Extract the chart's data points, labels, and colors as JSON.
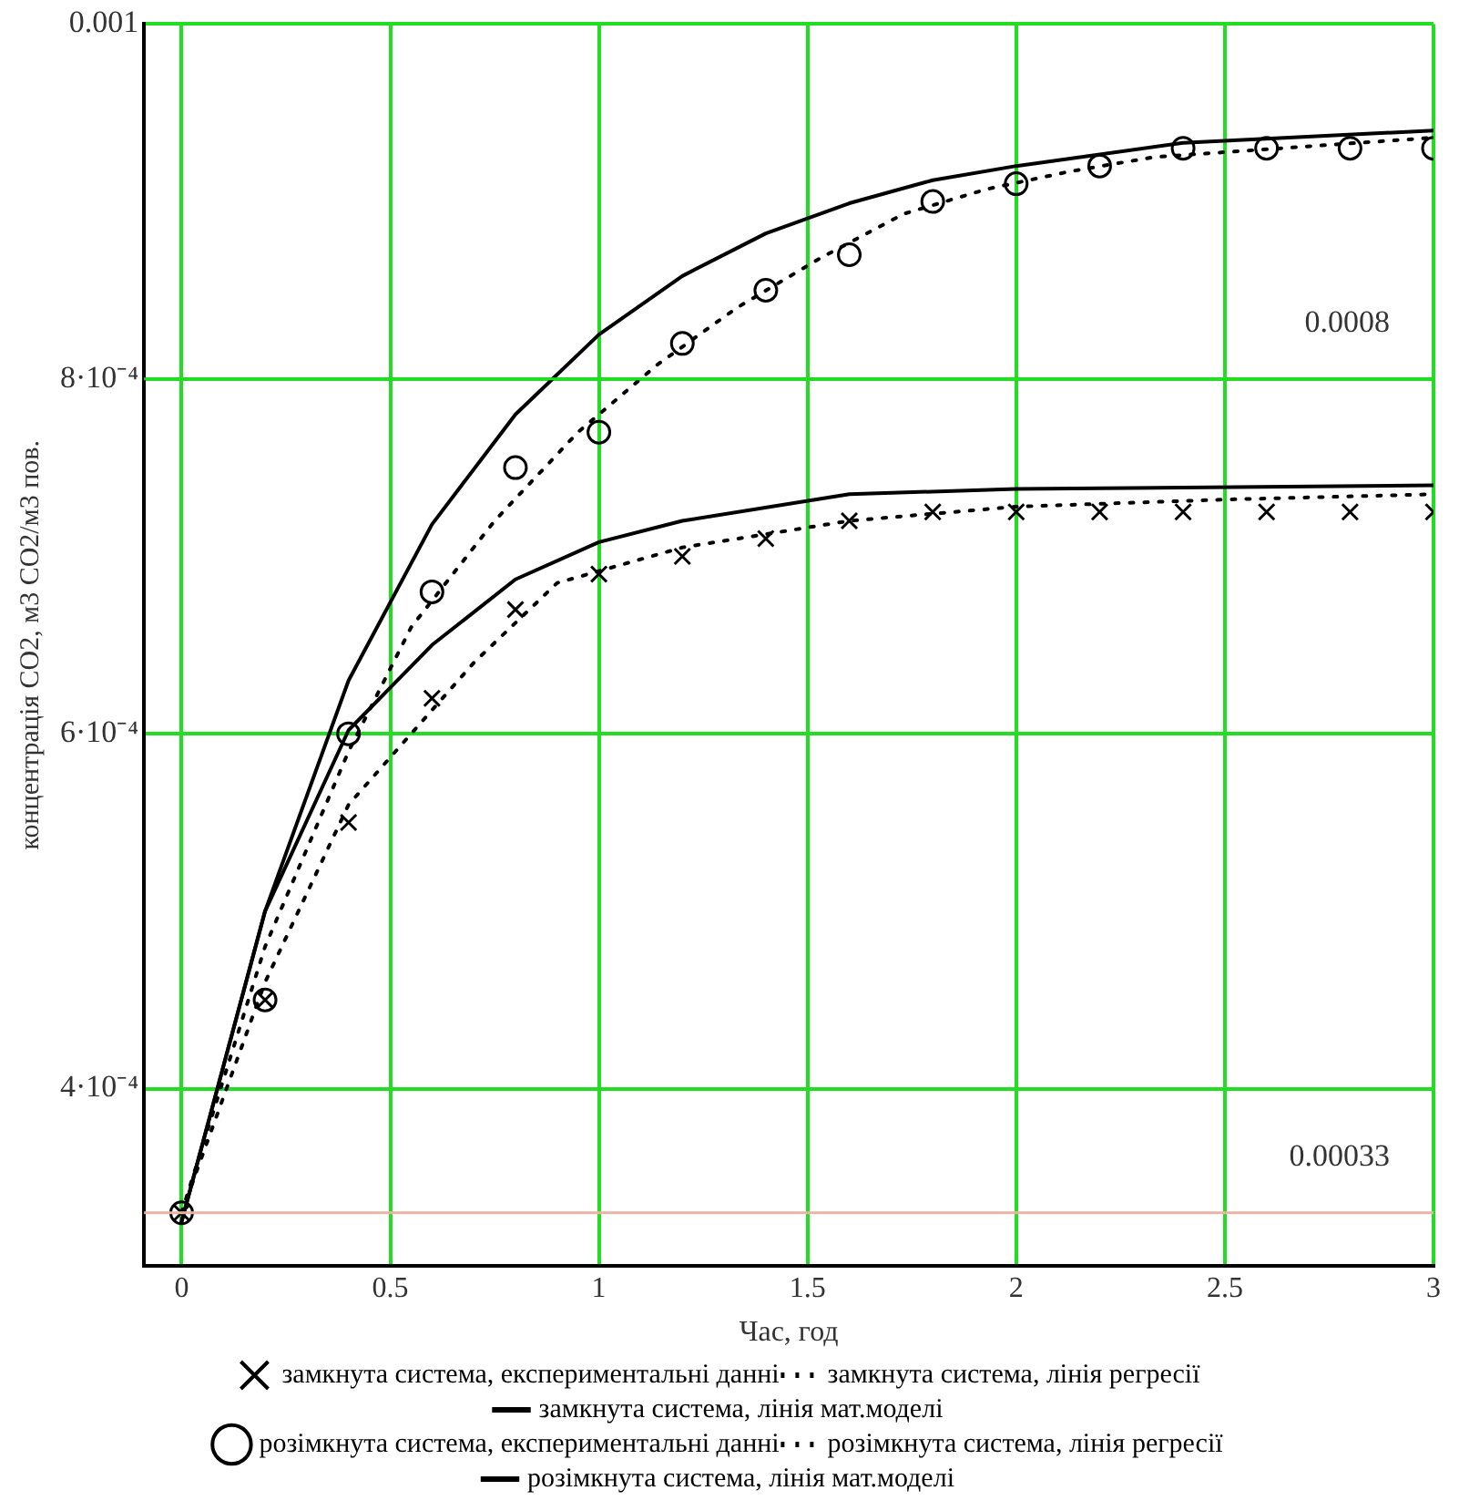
{
  "chart_data": {
    "type": "line",
    "xlabel": "Час, год",
    "ylabel": "концентрація CO2, м3 CO2/м3 пов.",
    "xlim": [
      -0.09,
      3
    ],
    "xticks": [
      0,
      0.5,
      1,
      1.5,
      2,
      2.5,
      3
    ],
    "ylim": [
      0.0003,
      0.001
    ],
    "yticks": [
      {
        "value": 0.0004,
        "label": "4·10⁻⁴"
      },
      {
        "value": 0.0006,
        "label": "6·10⁻⁴"
      },
      {
        "value": 0.0008,
        "label": "8·10⁻⁴"
      },
      {
        "value": 0.001,
        "label": "0.001"
      }
    ],
    "grid": true,
    "legend": "bottom",
    "ref_lines": [
      {
        "axis": "y",
        "value": 0.00033,
        "label": "0.00033",
        "color": "#e8b4a4"
      },
      {
        "axis": "y",
        "value": 0.0008,
        "label": "0.0008",
        "color": "#22dd22"
      }
    ],
    "series": [
      {
        "name": "замкнута система, експериментальні данні",
        "type": "scatter",
        "marker": "cross",
        "color": "#000000",
        "x": [
          0,
          0.2,
          0.4,
          0.6,
          0.8,
          1,
          1.2,
          1.4,
          1.6,
          1.8,
          2,
          2.2,
          2.4,
          2.6,
          2.8,
          3
        ],
        "values": [
          0.00033,
          0.00045,
          0.00055,
          0.00062,
          0.00067,
          0.00069,
          0.0007,
          0.00071,
          0.00072,
          0.000725,
          0.000725,
          0.000725,
          0.000725,
          0.000725,
          0.000725,
          0.000725
        ]
      },
      {
        "name": "замкнута система, лінія регресії",
        "type": "line",
        "line_style": "dotted",
        "marker": "none",
        "color": "#000000",
        "x": [
          0,
          0.2,
          0.4,
          0.7,
          0.9,
          1.2,
          1.6,
          2,
          2.5,
          3
        ],
        "values": [
          0.00033,
          0.00046,
          0.00056,
          0.00064,
          0.000685,
          0.000705,
          0.00072,
          0.000728,
          0.000732,
          0.000735
        ]
      },
      {
        "name": "замкнута система, лінія мат.моделі",
        "type": "line",
        "line_style": "solid",
        "marker": "none",
        "color": "#000000",
        "x": [
          0,
          0.2,
          0.4,
          0.6,
          0.8,
          1,
          1.2,
          1.6,
          2,
          3
        ],
        "values": [
          0.000325,
          0.0005,
          0.000602,
          0.00065,
          0.000687,
          0.000708,
          0.00072,
          0.000735,
          0.000738,
          0.00074
        ]
      },
      {
        "name": "розімкнута система, експериментальні данні",
        "type": "scatter",
        "marker": "circle",
        "color": "#000000",
        "x": [
          0,
          0.2,
          0.4,
          0.6,
          0.8,
          1,
          1.2,
          1.4,
          1.6,
          1.8,
          2,
          2.2,
          2.4,
          2.6,
          2.8,
          3
        ],
        "values": [
          0.00033,
          0.00045,
          0.0006,
          0.00068,
          0.00075,
          0.00077,
          0.00082,
          0.00085,
          0.00087,
          0.0009,
          0.00091,
          0.00092,
          0.00093,
          0.00093,
          0.00093,
          0.00093
        ]
      },
      {
        "name": "розімкнута система, лінія регресії",
        "type": "line",
        "line_style": "dotted",
        "marker": "none",
        "color": "#000000",
        "x": [
          0,
          0.2,
          0.4,
          0.55,
          0.75,
          0.95,
          1.14,
          1.33,
          1.53,
          1.73,
          1.93,
          2.13,
          2.33,
          3
        ],
        "values": [
          0.00033,
          0.00048,
          0.00059,
          0.00066,
          0.00072,
          0.00077,
          0.000808,
          0.00084,
          0.000868,
          0.000893,
          0.000907,
          0.000917,
          0.000925,
          0.000936
        ]
      },
      {
        "name": "розімкнута система, лінія мат.моделі",
        "type": "line",
        "line_style": "solid",
        "marker": "none",
        "color": "#000000",
        "x": [
          0,
          0.2,
          0.4,
          0.6,
          0.8,
          1,
          1.2,
          1.4,
          1.6,
          1.8,
          2,
          2.4,
          3
        ],
        "values": [
          0.000325,
          0.0005,
          0.00063,
          0.000718,
          0.00078,
          0.000825,
          0.000858,
          0.000882,
          0.000899,
          0.000912,
          0.00092,
          0.000933,
          0.00094
        ]
      }
    ]
  }
}
